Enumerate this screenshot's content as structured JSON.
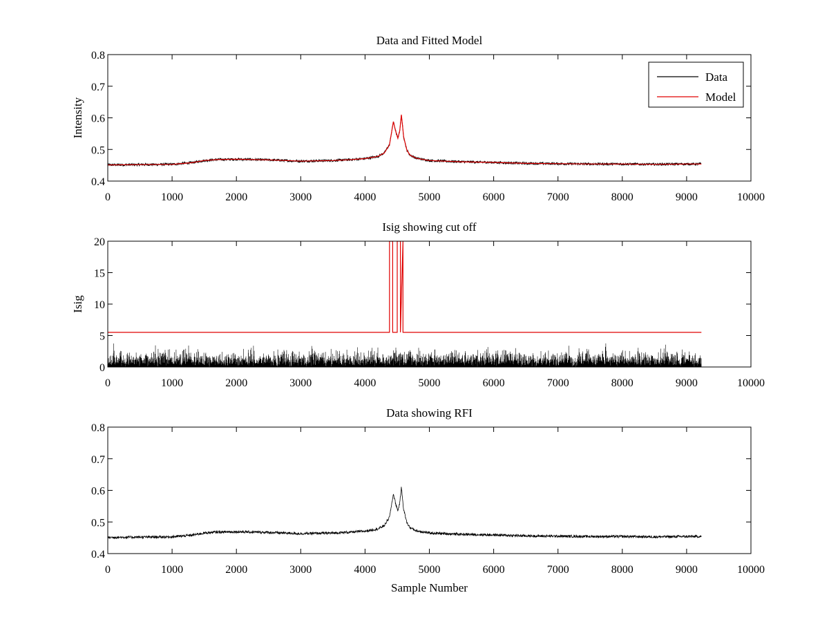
{
  "figure": {
    "background": "#ffffff"
  },
  "chart_data": [
    {
      "type": "line",
      "title": "Data and Fitted Model",
      "xlabel": "",
      "ylabel": "Intensity",
      "xlim": [
        0,
        10000
      ],
      "ylim": [
        0.4,
        0.8
      ],
      "xticks": [
        0,
        1000,
        2000,
        3000,
        4000,
        5000,
        6000,
        7000,
        8000,
        9000,
        10000
      ],
      "yticks": [
        0.4,
        0.5,
        0.6,
        0.7,
        0.8
      ],
      "xtick_labels": [
        "0",
        "1000",
        "2000",
        "3000",
        "4000",
        "5000",
        "6000",
        "7000",
        "8000",
        "9000",
        "10000"
      ],
      "ytick_labels": [
        "0.4",
        "0.5",
        "0.6",
        "0.7",
        "0.8"
      ],
      "legend": {
        "position": "top-right",
        "entries": [
          "Data",
          "Model"
        ]
      },
      "series": [
        {
          "name": "Data",
          "color": "#000000",
          "noise_amplitude": 0.004,
          "x": [
            0,
            500,
            1000,
            1300,
            1500,
            1700,
            2000,
            2500,
            3000,
            3500,
            3800,
            4000,
            4200,
            4300,
            4380,
            4440,
            4480,
            4510,
            4540,
            4565,
            4600,
            4650,
            4700,
            4800,
            5000,
            5500,
            6000,
            6500,
            7000,
            7500,
            8000,
            8500,
            9000,
            9230
          ],
          "values": [
            0.451,
            0.452,
            0.453,
            0.458,
            0.465,
            0.468,
            0.469,
            0.467,
            0.463,
            0.465,
            0.468,
            0.471,
            0.478,
            0.489,
            0.515,
            0.588,
            0.555,
            0.535,
            0.56,
            0.61,
            0.54,
            0.498,
            0.482,
            0.472,
            0.465,
            0.461,
            0.459,
            0.456,
            0.455,
            0.454,
            0.454,
            0.453,
            0.454,
            0.454
          ]
        },
        {
          "name": "Model",
          "color": "#e00000",
          "x": [
            0,
            500,
            1000,
            1300,
            1500,
            1700,
            2000,
            2500,
            3000,
            3500,
            3800,
            4000,
            4200,
            4300,
            4380,
            4440,
            4480,
            4510,
            4540,
            4565,
            4600,
            4650,
            4700,
            4800,
            5000,
            5500,
            6000,
            6500,
            7000,
            7500,
            8000,
            8500,
            9000,
            9230
          ],
          "values": [
            0.451,
            0.452,
            0.453,
            0.458,
            0.465,
            0.468,
            0.469,
            0.467,
            0.463,
            0.465,
            0.468,
            0.471,
            0.478,
            0.489,
            0.515,
            0.588,
            0.555,
            0.535,
            0.56,
            0.61,
            0.54,
            0.498,
            0.482,
            0.472,
            0.465,
            0.461,
            0.459,
            0.456,
            0.455,
            0.454,
            0.454,
            0.453,
            0.454,
            0.454
          ]
        }
      ]
    },
    {
      "type": "line",
      "title": "Isig showing cut off",
      "xlabel": "",
      "ylabel": "Isig",
      "xlim": [
        0,
        10000
      ],
      "ylim": [
        0,
        20
      ],
      "xticks": [
        0,
        1000,
        2000,
        3000,
        4000,
        5000,
        6000,
        7000,
        8000,
        9000,
        10000
      ],
      "yticks": [
        0,
        5,
        10,
        15,
        20
      ],
      "xtick_labels": [
        "0",
        "1000",
        "2000",
        "3000",
        "4000",
        "5000",
        "6000",
        "7000",
        "8000",
        "9000",
        "10000"
      ],
      "ytick_labels": [
        "0",
        "5",
        "10",
        "15",
        "20"
      ],
      "series": [
        {
          "color": "#000000",
          "style": "noise-floor",
          "x_range": [
            0,
            9230
          ],
          "typical_max": 2.5,
          "peak_max": 3.9
        },
        {
          "color": "#e00000",
          "style": "step",
          "x": [
            0,
            4380,
            4380,
            4430,
            4430,
            4500,
            4500,
            4550,
            4550,
            4590,
            4590,
            9230
          ],
          "values": [
            5.5,
            5.5,
            20,
            20,
            5.5,
            5.5,
            20,
            20,
            5.5,
            20,
            5.5,
            5.5
          ]
        }
      ]
    },
    {
      "type": "line",
      "title": "Data showing RFI",
      "xlabel": "Sample Number",
      "ylabel": "",
      "xlim": [
        0,
        10000
      ],
      "ylim": [
        0.4,
        0.8
      ],
      "xticks": [
        0,
        1000,
        2000,
        3000,
        4000,
        5000,
        6000,
        7000,
        8000,
        9000,
        10000
      ],
      "yticks": [
        0.4,
        0.5,
        0.6,
        0.7,
        0.8
      ],
      "xtick_labels": [
        "0",
        "1000",
        "2000",
        "3000",
        "4000",
        "5000",
        "6000",
        "7000",
        "8000",
        "9000",
        "10000"
      ],
      "ytick_labels": [
        "0.4",
        "0.5",
        "0.6",
        "0.7",
        "0.8"
      ],
      "series": [
        {
          "color": "#000000",
          "noise_amplitude": 0.004,
          "x": [
            0,
            500,
            1000,
            1300,
            1500,
            1700,
            2000,
            2500,
            3000,
            3500,
            3800,
            4000,
            4200,
            4300,
            4380,
            4440,
            4480,
            4510,
            4540,
            4565,
            4600,
            4650,
            4700,
            4800,
            5000,
            5500,
            6000,
            6500,
            7000,
            7500,
            8000,
            8500,
            9000,
            9230
          ],
          "values": [
            0.451,
            0.452,
            0.453,
            0.458,
            0.465,
            0.468,
            0.469,
            0.467,
            0.463,
            0.465,
            0.468,
            0.471,
            0.478,
            0.489,
            0.515,
            0.588,
            0.555,
            0.535,
            0.56,
            0.61,
            0.54,
            0.498,
            0.482,
            0.472,
            0.465,
            0.461,
            0.459,
            0.456,
            0.455,
            0.454,
            0.454,
            0.453,
            0.454,
            0.454
          ]
        }
      ]
    }
  ]
}
